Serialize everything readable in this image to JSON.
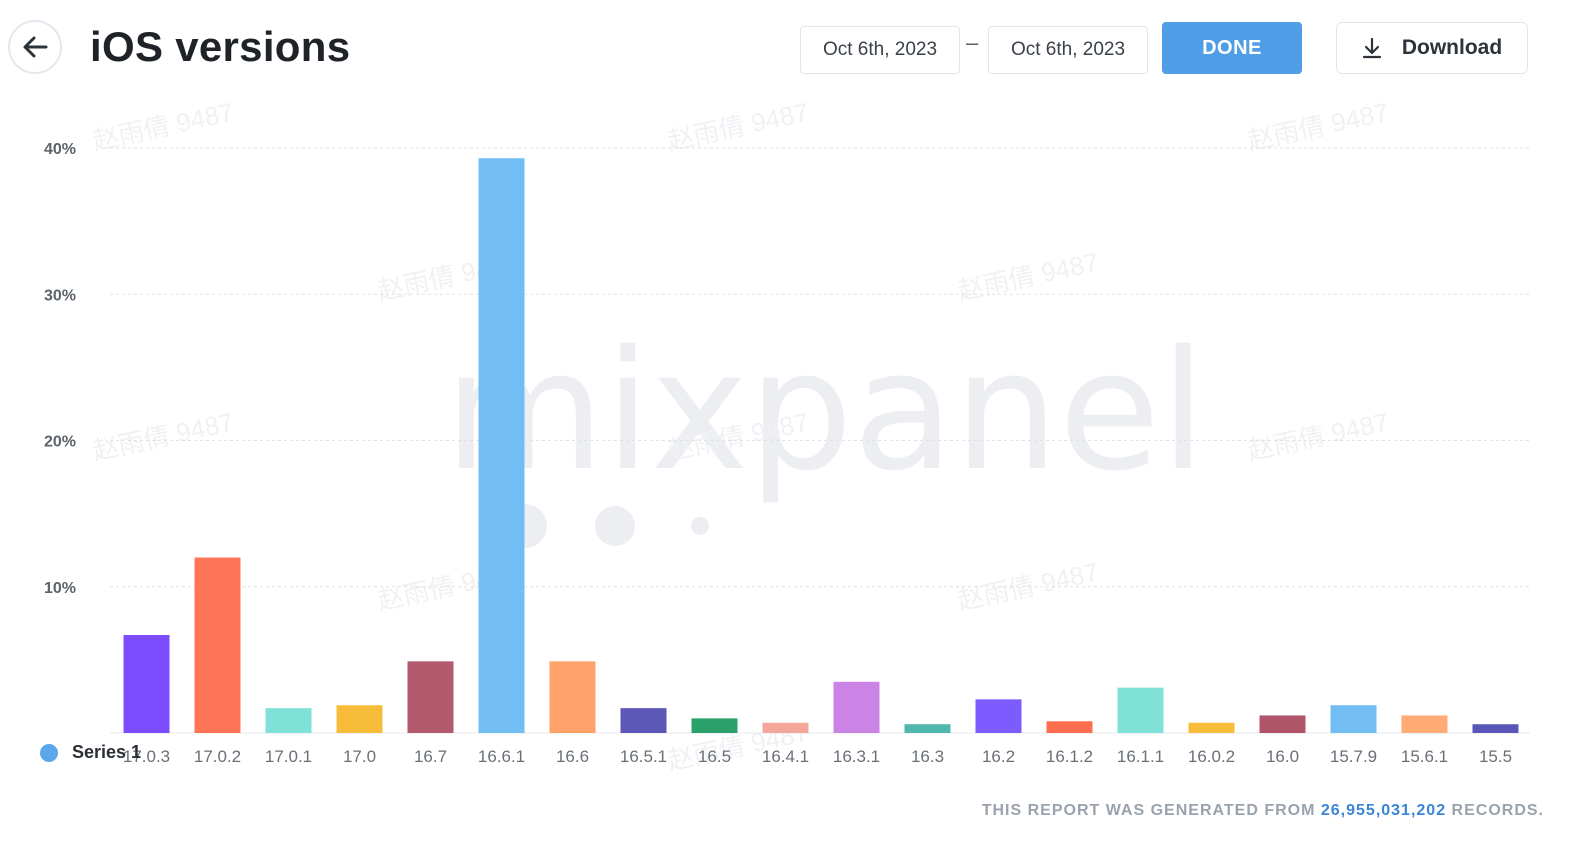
{
  "header": {
    "title": "iOS versions",
    "start_date": "Oct 6th, 2023",
    "date_separator": "–",
    "end_date": "Oct 6th, 2023",
    "done_label": "DONE",
    "download_label": "Download"
  },
  "watermark": {
    "brand": "mixpanel",
    "user_mark": "赵雨倩 9487"
  },
  "colors": {
    "accent": "#4f9de6",
    "legend_dot": "#5aa8ea",
    "records": "#3a86d4"
  },
  "footer": {
    "prefix": "THIS REPORT WAS GENERATED FROM",
    "records": "26,955,031,202",
    "suffix": "RECORDS."
  },
  "chart_data": {
    "type": "bar",
    "title": "",
    "xlabel": "",
    "ylabel": "",
    "ylim": [
      0,
      40
    ],
    "yticks": [
      "10%",
      "20%",
      "30%",
      "40%"
    ],
    "grid": true,
    "legend": "bottom-left",
    "series": [
      {
        "name": "Series 1",
        "values": [
          6.7,
          12.0,
          1.7,
          1.9,
          4.9,
          39.3,
          4.9,
          1.7,
          1.0,
          0.7,
          3.5,
          0.6,
          2.3,
          0.8,
          3.1,
          0.7,
          1.2,
          1.9,
          1.2,
          0.6
        ]
      }
    ],
    "categories": [
      "17.0.3",
      "17.0.2",
      "17.0.1",
      "17.0",
      "16.7",
      "16.6.1",
      "16.6",
      "16.5.1",
      "16.5",
      "16.4.1",
      "16.3.1",
      "16.3",
      "16.2",
      "16.1.2",
      "16.1.1",
      "16.0.2",
      "16.0",
      "15.7.9",
      "15.6.1",
      "15.5"
    ],
    "bar_colors": [
      "#7b4dff",
      "#ff7557",
      "#7fe1d8",
      "#f8bc3b",
      "#b2596e",
      "#72bef4",
      "#ffa36a",
      "#5d57b7",
      "#2aa16a",
      "#f4a69a",
      "#cb84e5",
      "#4fb7ae",
      "#7c5bff",
      "#ff6e4e",
      "#80e1d6",
      "#f8bc3b",
      "#b0546a",
      "#72bef4",
      "#ffab75",
      "#5857b8"
    ]
  }
}
